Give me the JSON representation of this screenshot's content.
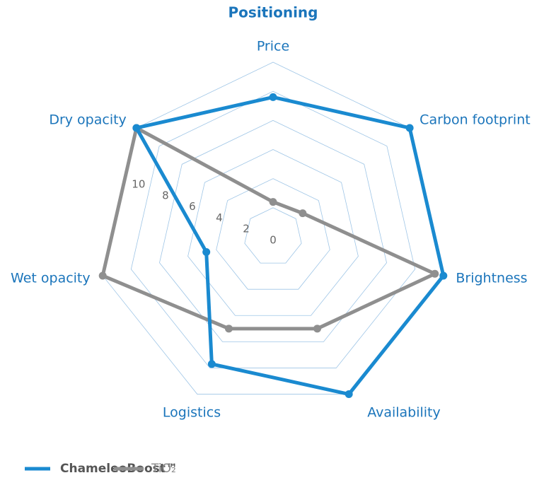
{
  "chart_data": {
    "type": "radar",
    "title": "Positioning",
    "categories": [
      "Price",
      "Carbon footprint",
      "Brightness",
      "Availability",
      "Logistics",
      "Wet opacity",
      "Dry opacity"
    ],
    "series": [
      {
        "name": "ChameleoBoost™",
        "color": "#1a8ad0",
        "values": [
          7.6,
          10,
          10,
          10,
          7.7,
          2.7,
          10
        ]
      },
      {
        "name": "TiO₂",
        "color": "#8f8f8f",
        "values": [
          0.4,
          0.6,
          9.4,
          5,
          5,
          10,
          10
        ]
      }
    ],
    "ylim": [
      -2,
      10
    ],
    "yticks": [
      0,
      2,
      4,
      6,
      8,
      10
    ],
    "grid": true,
    "grid_color": "#9ec5e6",
    "legend": "bottom-left"
  }
}
